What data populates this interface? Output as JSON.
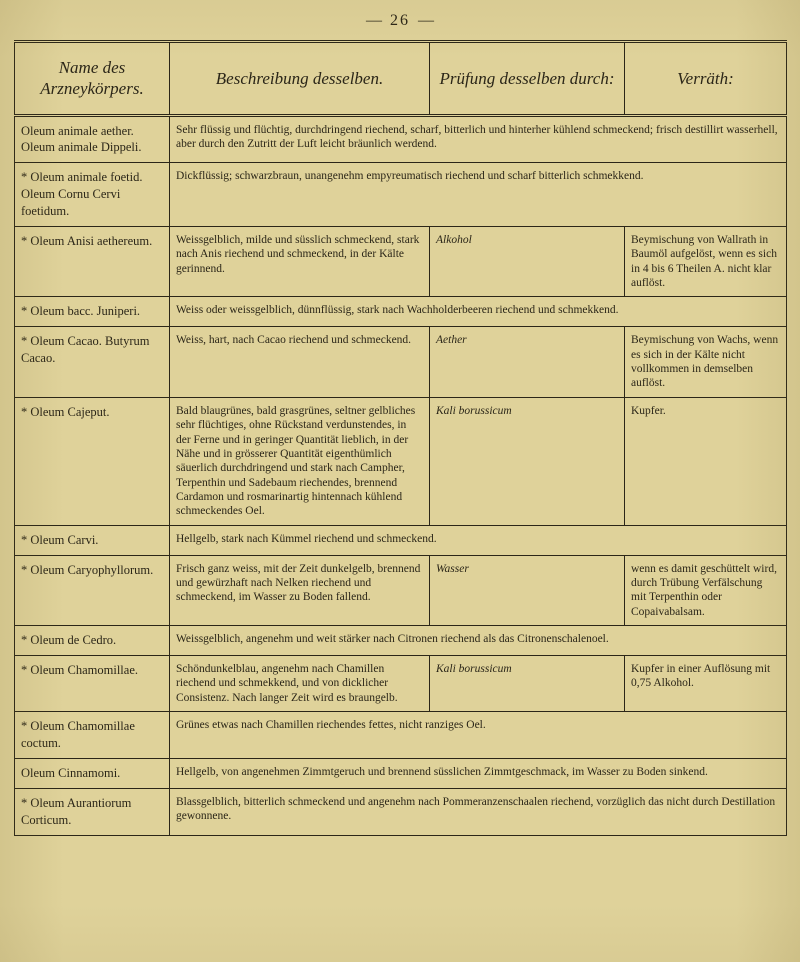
{
  "page_number": "26",
  "columns": {
    "c1": "Name des Arzneykörpers.",
    "c2": "Beschreibung desselben.",
    "c3": "Prüfung desselben durch:",
    "c4": "Verräth:"
  },
  "rows": [
    {
      "name": "Oleum animale aether.\nOleum animale Dippeli.",
      "desc_full": "Sehr flüssig und flüchtig, durchdringend riechend, scharf, bitterlich und hinterher kühlend schmeckend; frisch destillirt wasserhell, aber durch den Zutritt der Luft leicht bräunlich werdend."
    },
    {
      "name": "* Oleum animale foetid.\nOleum Cornu Cervi foetidum.",
      "desc_full": "Dickflüssig; schwarzbraun, unangenehm empyreumatisch riechend und scharf bitterlich schmek­kend."
    },
    {
      "name": "* Oleum Anisi aethereum.",
      "desc": "Weissgelblich, milde und süsslich schmeckend, stark nach Anis rie­chend und schmeckend, in der Kälte gerinnend.",
      "test_label": "Alkohol",
      "verrath": "Beymischung von Wallrath in Baumöl aufgelöst, wenn es sich in 4 bis 6 Thei­len A. nicht klar auflöst."
    },
    {
      "name": "* Oleum bacc. Juniperi.",
      "desc_full": "Weiss oder weissgelblich, dünnflüssig, stark nach Wachholderbeeren riechend und schmek­kend."
    },
    {
      "name": "* Oleum Cacao.\nButyrum Cacao.",
      "desc": "Weiss, hart, nach Cacao riechend und schmeckend.",
      "test_label": "Aether",
      "verrath": "Beymischung von Wachs, wenn es sich in der Kälte nicht vollkommen in dem­selben auflöst."
    },
    {
      "name": "* Oleum Cajeput.",
      "desc": "Bald blaugrünes, bald grasgrünes, seltner gelbliches sehr flüchtiges, ohne Rückstand verdunstendes, in der Ferne und in geringer Quan­tität lieblich, in der Nähe und in grösserer Quantität eigenthümlich säuerlich durchdringend und stark nach Campher, Terpenthin und Sadebaum riechendes, brennend Cardamon und rosmarinartig hin­tennach kühlend schmeckendes Oel.",
      "test_label": "Kali borussicum",
      "verrath": "Kupfer."
    },
    {
      "name": "* Oleum Carvi.",
      "desc_full": "Hellgelb, stark nach Kümmel riechend und schmeckend."
    },
    {
      "name": "* Oleum Caryo­phyllorum.",
      "desc": "Frisch ganz weiss, mit der Zeit dun­kelgelb, brennend und gewürz­haft nach Nelken riechend und schmeckend, im Wasser zu Boden fallend.",
      "test_label": "Wasser",
      "verrath": "wenn es damit geschüttelt wird, durch Trübung Verfälschung mit Terpen­thin oder Copaivabalsam."
    },
    {
      "name": "* Oleum de Cedro.",
      "desc_full": "Weissgelblich, angenehm und weit stärker nach Citronen riechend als das Citronenschalenoel."
    },
    {
      "name": "* Oleum Chamo­millae.",
      "desc": "Schöndunkelblau, angenehm nach Chamillen riechend und schmek­kend, und von dicklicher Consis­tenz. Nach langer Zeit wird es braungelb.",
      "test_label": "Kali borussicum",
      "verrath": "Kupfer in einer Auflösung mit 0,75 Alkohol."
    },
    {
      "name": "* Oleum Chamo­millae coctum.",
      "desc_full": "Grünes etwas nach Chamillen riechendes fettes, nicht ranziges Oel."
    },
    {
      "name": "Oleum Cinnamomi.",
      "desc_full": "Hellgelb, von angenehmen Zimmtgeruch und brennend süsslichen Zimmtgeschmack, im Was­ser zu Boden sinkend."
    },
    {
      "name": "* Oleum Auran­tiorum Corticum.",
      "desc_full": "Blassgelblich, bitterlich schmeckend und angenehm nach Pommeranzenschaalen riechend, vor­züglich das nicht durch Destillation gewonnene."
    }
  ]
}
